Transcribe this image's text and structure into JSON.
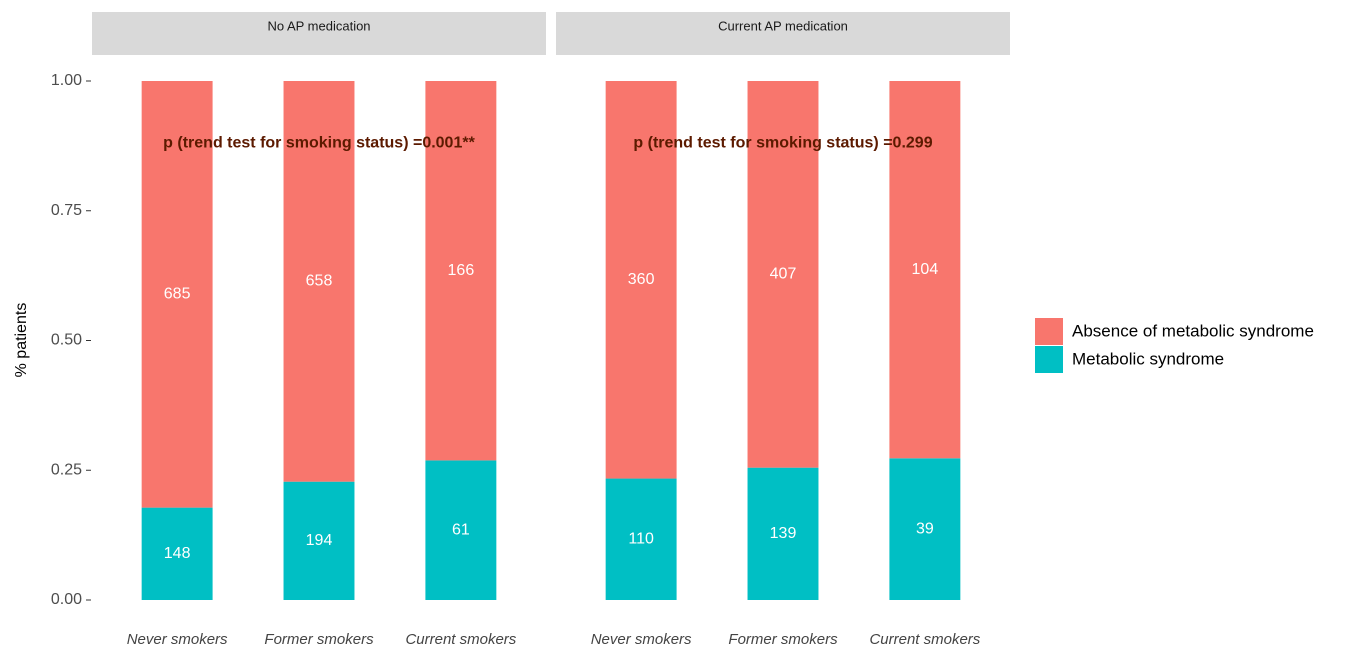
{
  "chart_data": {
    "type": "bar",
    "stacked": true,
    "y_label": "% patients",
    "ylim": [
      0,
      1
    ],
    "yticks": [
      {
        "value": 0,
        "label": "0.00"
      },
      {
        "value": 0.25,
        "label": "0.25"
      },
      {
        "value": 0.5,
        "label": "0.50"
      },
      {
        "value": 0.75,
        "label": "0.75"
      },
      {
        "value": 1,
        "label": "1.00"
      }
    ],
    "legend": "right",
    "series": [
      {
        "name": "Absence of metabolic syndrome",
        "color": "#f8766d"
      },
      {
        "name": "Metabolic syndrome",
        "color": "#00bfc4"
      }
    ],
    "facets": [
      {
        "title": "No AP medication",
        "annotation": "p (trend test for smoking status) =0.001**",
        "annotation_y": 0.88,
        "categories": [
          "Never smokers",
          "Former smokers",
          "Current smokers"
        ],
        "values": [
          [
            0.822,
            0.772,
            0.731
          ],
          [
            0.178,
            0.228,
            0.269
          ]
        ],
        "counts": [
          [
            685,
            658,
            166
          ],
          [
            148,
            194,
            61
          ]
        ]
      },
      {
        "title": "Current AP medication",
        "annotation": "p (trend test for smoking status) =0.299",
        "annotation_y": 0.88,
        "categories": [
          "Never smokers",
          "Former smokers",
          "Current smokers"
        ],
        "values": [
          [
            0.766,
            0.745,
            0.727
          ],
          [
            0.234,
            0.255,
            0.273
          ]
        ],
        "counts": [
          [
            360,
            407,
            104
          ],
          [
            110,
            139,
            39
          ]
        ]
      }
    ]
  }
}
